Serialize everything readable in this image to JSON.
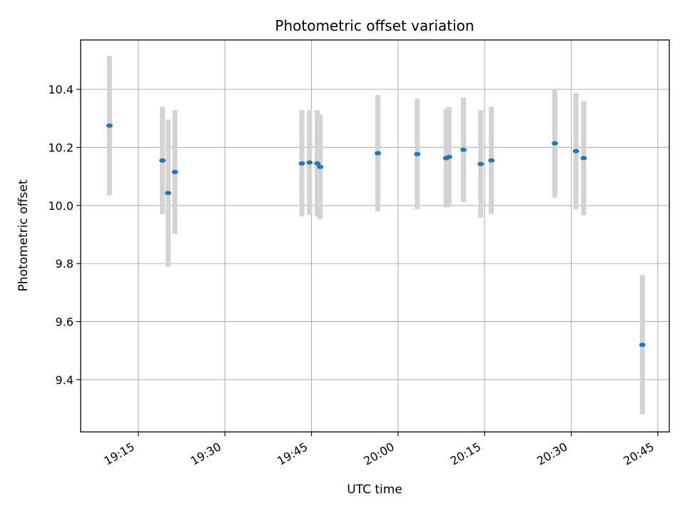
{
  "chart_data": {
    "type": "scatter",
    "title": "Photometric offset variation",
    "xlabel": "UTC time",
    "ylabel": "Photometric offset",
    "grid": true,
    "legend": "none",
    "colors": {
      "marker": "#1f77b4",
      "errorbar": "#d3d3d3",
      "grid": "#b0b0b0"
    },
    "xlim": [
      "19:05",
      "20:47"
    ],
    "ylim": [
      9.22,
      10.57
    ],
    "x_ticks": [
      "19:15",
      "19:30",
      "19:45",
      "20:00",
      "20:15",
      "20:30",
      "20:45"
    ],
    "y_ticks": [
      "9.4",
      "9.6",
      "9.8",
      "10.0",
      "10.2",
      "10.4"
    ],
    "points": [
      {
        "x": "19:10:00",
        "y": 10.275,
        "err": 0.24
      },
      {
        "x": "19:19:10",
        "y": 10.155,
        "err": 0.185
      },
      {
        "x": "19:20:10",
        "y": 10.043,
        "err": 0.253
      },
      {
        "x": "19:21:20",
        "y": 10.115,
        "err": 0.213
      },
      {
        "x": "19:43:20",
        "y": 10.145,
        "err": 0.183
      },
      {
        "x": "19:44:40",
        "y": 10.148,
        "err": 0.18
      },
      {
        "x": "19:46:00",
        "y": 10.145,
        "err": 0.183
      },
      {
        "x": "19:46:30",
        "y": 10.133,
        "err": 0.18
      },
      {
        "x": "19:56:30",
        "y": 10.18,
        "err": 0.2
      },
      {
        "x": "20:03:20",
        "y": 10.177,
        "err": 0.19
      },
      {
        "x": "20:08:20",
        "y": 10.163,
        "err": 0.17
      },
      {
        "x": "20:08:50",
        "y": 10.167,
        "err": 0.172
      },
      {
        "x": "20:11:20",
        "y": 10.192,
        "err": 0.18
      },
      {
        "x": "20:14:20",
        "y": 10.143,
        "err": 0.185
      },
      {
        "x": "20:16:10",
        "y": 10.155,
        "err": 0.185
      },
      {
        "x": "20:27:10",
        "y": 10.214,
        "err": 0.187
      },
      {
        "x": "20:30:50",
        "y": 10.187,
        "err": 0.2
      },
      {
        "x": "20:32:10",
        "y": 10.163,
        "err": 0.197
      },
      {
        "x": "20:42:20",
        "y": 9.52,
        "err": 0.24
      }
    ]
  }
}
